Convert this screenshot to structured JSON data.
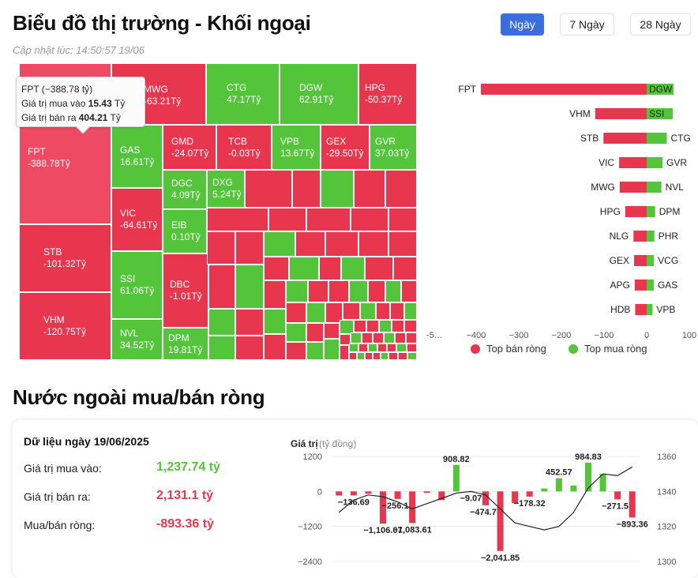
{
  "header": {
    "title": "Biểu đồ thị trường - Khối ngoại",
    "updated": "Cập nhật lúc: 14:50:57 19/06",
    "ranges": [
      "Ngày",
      "7 Ngày",
      "28 Ngày"
    ],
    "active_range": "Ngày"
  },
  "tooltip": {
    "title": "FPT (−388.78 tỷ)",
    "buy_label": "Giá trị mua vào",
    "buy_value": "15.43",
    "sell_label": "Giá trị bán ra",
    "sell_value": "404.21",
    "unit": "Tỷ"
  },
  "treemap": {
    "tiles": [
      {
        "ticker": "FPT",
        "value": "-388.78Tỷ",
        "sign": "neg"
      },
      {
        "ticker": "MWG",
        "value": "-63.21Tỷ",
        "sign": "neg"
      },
      {
        "ticker": "CTG",
        "value": "47.17Tỷ",
        "sign": "pos"
      },
      {
        "ticker": "DGW",
        "value": "62.91Tỷ",
        "sign": "pos"
      },
      {
        "ticker": "HPG",
        "value": "-50.37Tỷ",
        "sign": "neg"
      },
      {
        "ticker": "GAS",
        "value": "16.61Tỷ",
        "sign": "pos"
      },
      {
        "ticker": "GMD",
        "value": "-24.07Tỷ",
        "sign": "neg"
      },
      {
        "ticker": "TCB",
        "value": "-0.03Tỷ",
        "sign": "neg"
      },
      {
        "ticker": "VPB",
        "value": "13.67Tỷ",
        "sign": "pos"
      },
      {
        "ticker": "GEX",
        "value": "-29.50Tỷ",
        "sign": "neg"
      },
      {
        "ticker": "GVR",
        "value": "37.03Tỷ",
        "sign": "pos"
      },
      {
        "ticker": "DGC",
        "value": "4.09Tỷ",
        "sign": "pos"
      },
      {
        "ticker": "DXG",
        "value": "5.24Tỷ",
        "sign": "pos"
      },
      {
        "ticker": "VIC",
        "value": "-64.61Tỷ",
        "sign": "neg"
      },
      {
        "ticker": "EIB",
        "value": "0.10Tỷ",
        "sign": "pos"
      },
      {
        "ticker": "STB",
        "value": "-101.32Tỷ",
        "sign": "neg"
      },
      {
        "ticker": "SSI",
        "value": "61.06Tỷ",
        "sign": "pos"
      },
      {
        "ticker": "DBC",
        "value": "-1.01Tỷ",
        "sign": "neg"
      },
      {
        "ticker": "VHM",
        "value": "-120.75Tỷ",
        "sign": "neg"
      },
      {
        "ticker": "NVL",
        "value": "34.52Tỷ",
        "sign": "pos"
      },
      {
        "ticker": "DPM",
        "value": "19.81Tỷ",
        "sign": "pos"
      }
    ]
  },
  "chart_data": [
    {
      "type": "bar",
      "orientation": "horizontal",
      "sell_series": {
        "name": "Top bán ròng",
        "color": "#e8364f",
        "categories": [
          "FPT",
          "VHM",
          "STB",
          "VIC",
          "MWG",
          "HPG",
          "NLG",
          "GEX",
          "APG",
          "HDB"
        ],
        "values": [
          -388.78,
          -120.75,
          -101.32,
          -64.61,
          -63.21,
          -50.37,
          -31,
          -29.5,
          -28,
          -27
        ]
      },
      "buy_series": {
        "name": "Top mua ròng",
        "color": "#54c43b",
        "categories": [
          "DGW",
          "SSI",
          "CTG",
          "GVR",
          "NVL",
          "DPM",
          "PHR",
          "VCG",
          "GAS",
          "VPB"
        ],
        "values": [
          62.91,
          61.06,
          47.17,
          37.03,
          34.52,
          19.81,
          18,
          17,
          16.61,
          13.67
        ]
      },
      "x_ticks": [
        "−5…",
        "−400",
        "−300",
        "−200",
        "−100",
        "0",
        "100"
      ],
      "xlim": [
        -500,
        100
      ]
    },
    {
      "type": "bar+line",
      "title": "Dữ liệu ngày 19/06/2025",
      "ylabel": "Giá trị",
      "ylabel_unit": "(tỷ đồng)",
      "y_ticks_left": [
        "1200",
        "0",
        "−1200",
        "−2400"
      ],
      "y_ticks_right": [
        "1360",
        "1340",
        "1320",
        "1300"
      ],
      "ylim_left": [
        -2400,
        1200
      ],
      "ylim_right": [
        1300,
        1360
      ],
      "bars": [
        -140,
        -136.69,
        -80,
        -1106.07,
        -256.18,
        -1083.61,
        -50,
        -300,
        908.82,
        -9.07,
        -474.77,
        -2041.85,
        -400,
        -178.32,
        100,
        452.57,
        200,
        984.83,
        600,
        -271.51,
        -893.36
      ],
      "labels": {
        "1": "−136.69",
        "3": "−1,106.07",
        "4": "−256.18",
        "5": "−1,083.61",
        "8": "908.82",
        "9": "−9.07",
        "10": "−474.77",
        "11": "−2,041.85",
        "13": "−178.32",
        "15": "452.57",
        "17": "984.83",
        "19": "−271.51",
        "20": "−893.36"
      },
      "index_line": [
        1328,
        1335,
        1338,
        1337,
        1334,
        1330,
        1333,
        1336,
        1339,
        1340,
        1338,
        1330,
        1322,
        1320,
        1318,
        1320,
        1328,
        1342,
        1350,
        1349,
        1354
      ]
    }
  ],
  "legend": {
    "sell": "Top bán ròng",
    "buy": "Top mua ròng",
    "sell_color": "#e8364f",
    "buy_color": "#54c43b"
  },
  "summary": {
    "section_title": "Nước ngoài mua/bán ròng",
    "card_title": "Dữ liệu ngày 19/06/2025",
    "buy_label": "Giá trị mua vào:",
    "buy_value": "1,237.74 tỷ",
    "sell_label": "Giá trị bán ra:",
    "sell_value": "2,131.1 tỷ",
    "net_label": "Mua/bán ròng:",
    "net_value": "-893.36 tỷ"
  }
}
